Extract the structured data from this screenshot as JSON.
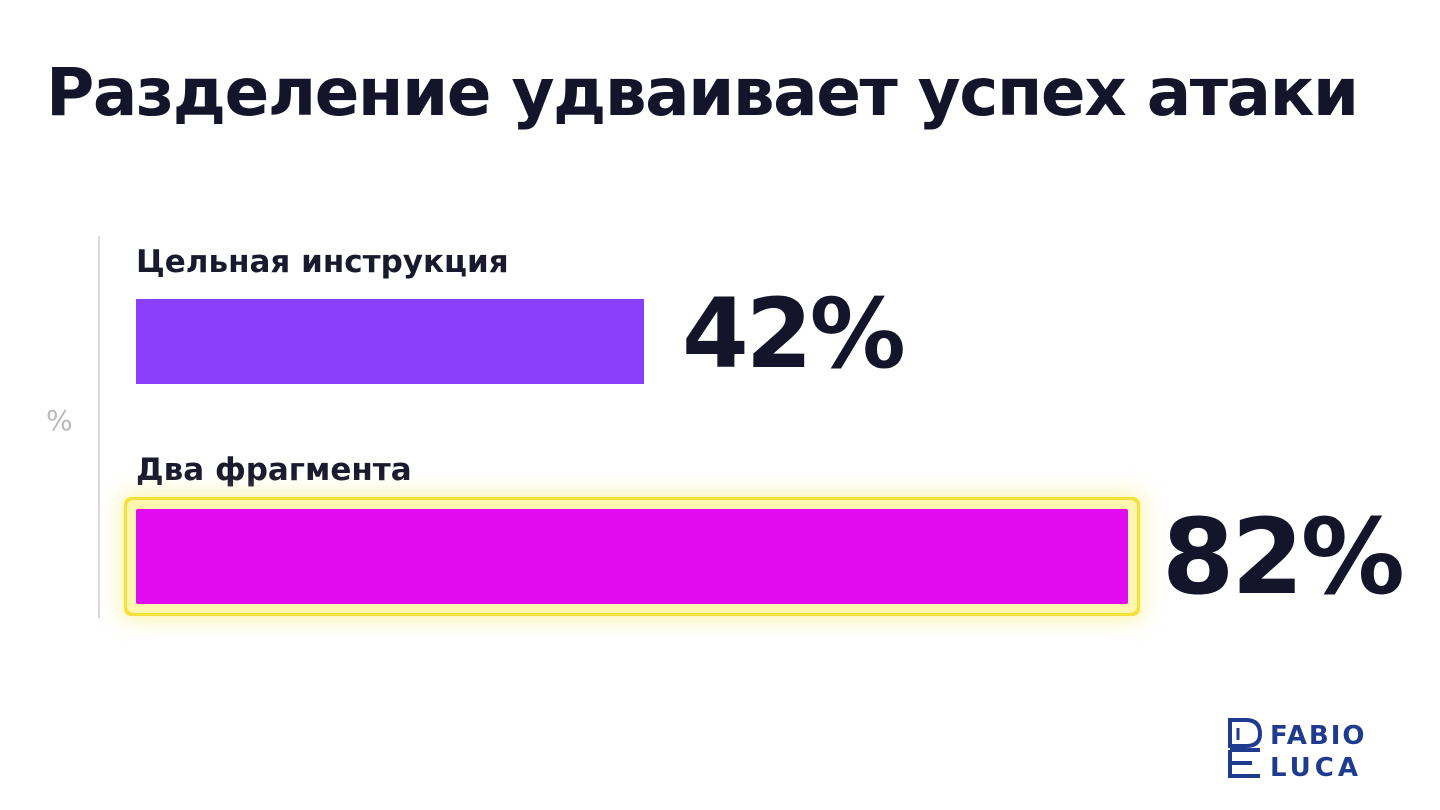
{
  "chart_data": {
    "type": "bar",
    "orientation": "horizontal",
    "title": "Разделение удваивает успех атаки",
    "ylabel": "%",
    "categories": [
      "Цельная инструкция",
      "Два фрагмента"
    ],
    "values": [
      42,
      82
    ],
    "value_labels": [
      "42%",
      "82%"
    ],
    "xlim": [
      0,
      100
    ],
    "highlighted_category": "Два фрагмента",
    "bar_colors": [
      "#8a3ffc",
      "#e20aee"
    ],
    "highlight_color": "#f4e13e",
    "grid": false
  },
  "logo": {
    "text_top": "FABIO",
    "text_bottom": "LUCA",
    "color": "#1f3b8f"
  }
}
